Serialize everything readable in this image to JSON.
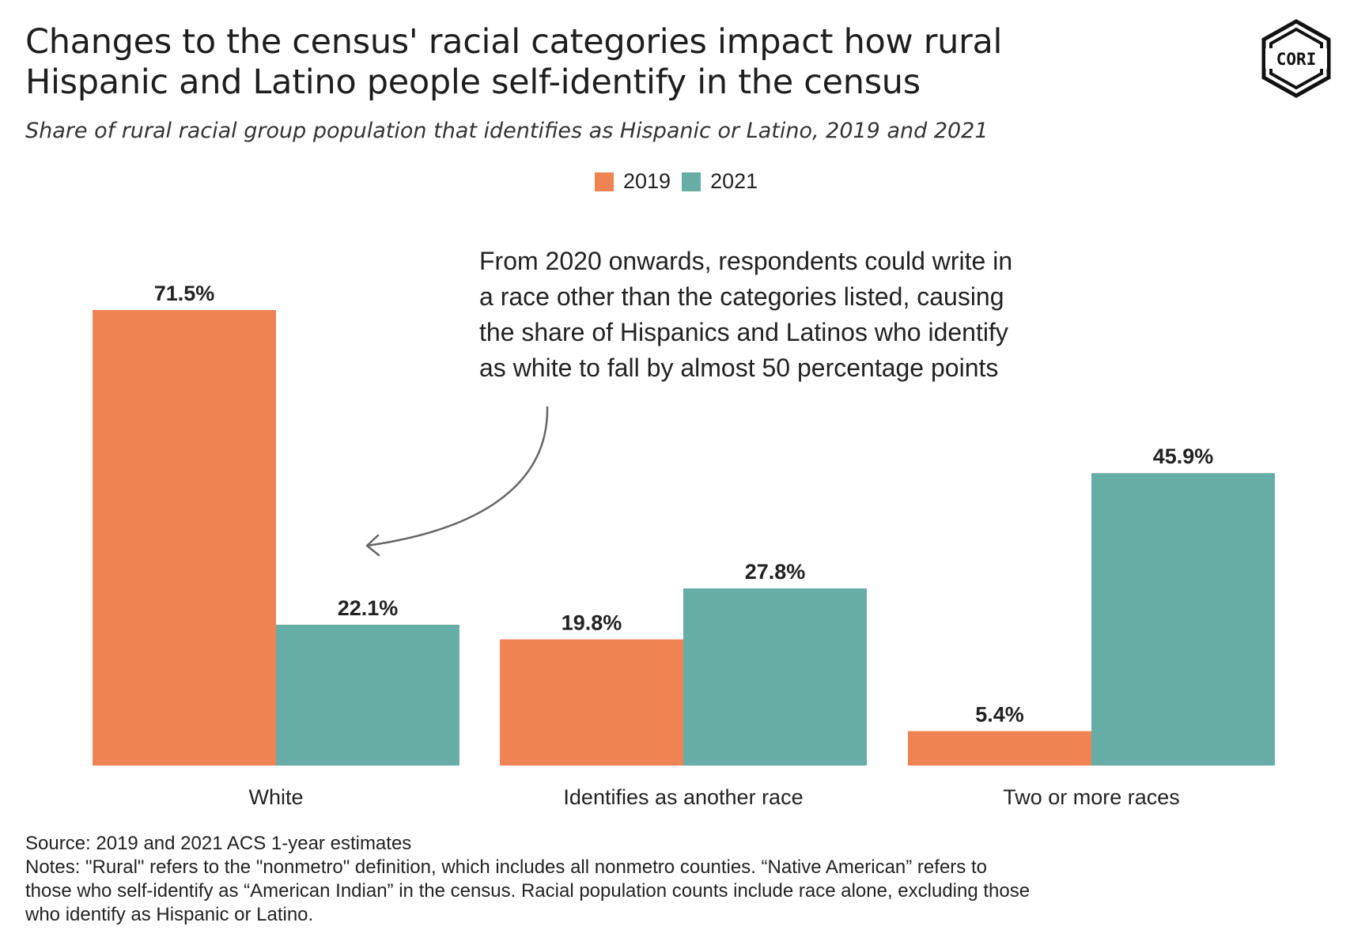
{
  "chart_data": {
    "type": "bar",
    "title": "Changes to the census' racial categories impact how rural Hispanic and Latino people self-identify in the census",
    "subtitle": "Share of rural racial group population that identifies as Hispanic or Latino, 2019 and 2021",
    "categories": [
      "White",
      "Identifies as another race",
      "Two or more races"
    ],
    "series": [
      {
        "name": "2019",
        "values": [
          71.5,
          19.8,
          5.4
        ],
        "labels": [
          "71.5%",
          "19.8%",
          "5.4%"
        ],
        "color": "#EF8354"
      },
      {
        "name": "2021",
        "values": [
          22.1,
          27.8,
          45.9
        ],
        "labels": [
          "22.1%",
          "27.8%",
          "45.9%"
        ],
        "color": "#66ADA5"
      }
    ],
    "ylim": [
      0,
      71.5
    ],
    "grid": false,
    "legend_position": "top-center",
    "annotation": [
      "From 2020 onwards, respondents could write in",
      "a race other than the categories listed, causing",
      "the share of Hispanics and Latinos who identify",
      "as white to fall by almost 50 percentage points"
    ]
  },
  "title_lines": [
    "Changes to the census' racial categories impact how rural",
    "Hispanic and Latino people self-identify in the census"
  ],
  "logo_text": "CORI",
  "footer": {
    "source": "Source: 2019 and 2021 ACS 1-year estimates",
    "notes": [
      "Notes: \"Rural\" refers to the \"nonmetro\" definition, which includes all nonmetro counties. “Native American” refers to",
      "those who self-identify as “American Indian” in the census. Racial population counts include race alone, excluding those",
      "who identify as Hispanic or Latino."
    ]
  }
}
